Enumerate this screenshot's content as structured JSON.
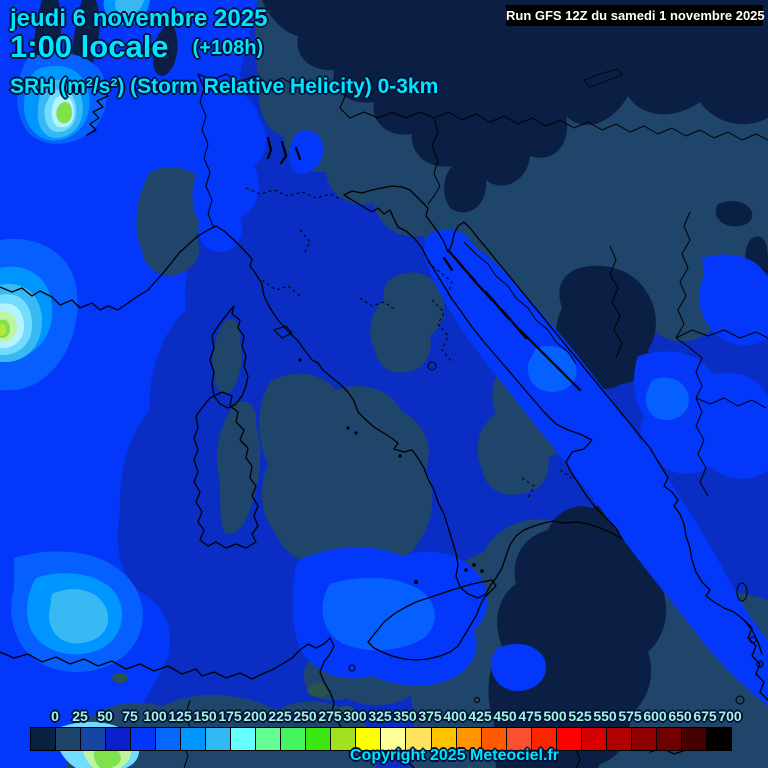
{
  "header": {
    "date_line": "jeudi 6 novembre 2025",
    "time_line": "1:00 locale",
    "run_offset": "(+108h)",
    "param_line": "SRH (m²/s²) (Storm Relative Helicity) 0-3km"
  },
  "run_box": {
    "label": "Run GFS 12Z du samedi 1 novembre 2025",
    "bg": "#000000",
    "text_color": "#ffffff"
  },
  "legend": {
    "tick_labels": [
      "0",
      "25",
      "50",
      "75",
      "100",
      "125",
      "150",
      "175",
      "200",
      "225",
      "250",
      "275",
      "300",
      "325",
      "350",
      "375",
      "400",
      "425",
      "450",
      "475",
      "500",
      "525",
      "550",
      "575",
      "600",
      "650",
      "675",
      "700"
    ],
    "cell_colors": [
      "#0b2142",
      "#1d4467",
      "#1745a5",
      "#0a20cd",
      "#0336fb",
      "#0467ff",
      "#0096ff",
      "#30b8f2",
      "#66ffff",
      "#63ff94",
      "#45f55f",
      "#3be712",
      "#a0e21e",
      "#feff00",
      "#ffff9a",
      "#ffe25e",
      "#ffc400",
      "#ff9300",
      "#ff5a00",
      "#fb4f31",
      "#ff2200",
      "#fe0000",
      "#d60000",
      "#b00000",
      "#8e0000",
      "#700000",
      "#450000",
      "#050000"
    ]
  },
  "copyright": "Copyright 2025 Meteociel.fr",
  "map": {
    "accent_text": "#00e4ff",
    "tick_text": "#a4f4df",
    "palette": {
      "bg": "#0a2dc4",
      "bright": "#0337fa",
      "mid": "#0560ff",
      "sky": "#0096ff",
      "lsky": "#38b9f3",
      "cyan": "#72dcff",
      "pcyan": "#b5f3ff",
      "pgreen": "#c0f4a0",
      "green": "#7fe24a",
      "ygreen": "#b4ea3a",
      "slate": "#20456b",
      "navy": "#0b1f44",
      "teal": "#2a524e",
      "coast": "#000000"
    }
  }
}
